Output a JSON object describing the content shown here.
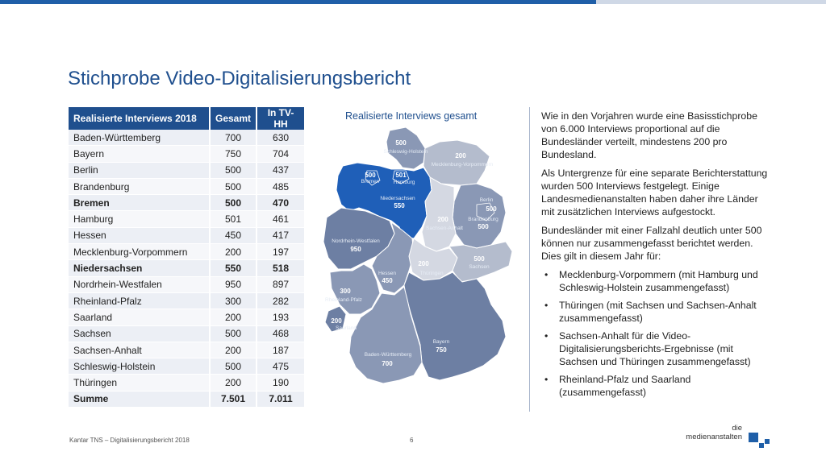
{
  "title": "Stichprobe Video-Digitalisierungsbericht",
  "table": {
    "headers": [
      "Realisierte Interviews 2018",
      "Gesamt",
      "In TV-HH"
    ],
    "rows": [
      {
        "land": "Baden-Württemberg",
        "gesamt": "700",
        "tvhh": "630"
      },
      {
        "land": "Bayern",
        "gesamt": "750",
        "tvhh": "704"
      },
      {
        "land": "Berlin",
        "gesamt": "500",
        "tvhh": "437"
      },
      {
        "land": "Brandenburg",
        "gesamt": "500",
        "tvhh": "485"
      },
      {
        "land": "Bremen",
        "gesamt": "500",
        "tvhh": "470"
      },
      {
        "land": "Hamburg",
        "gesamt": "501",
        "tvhh": "461"
      },
      {
        "land": "Hessen",
        "gesamt": "450",
        "tvhh": "417"
      },
      {
        "land": "Mecklenburg-Vorpommern",
        "gesamt": "200",
        "tvhh": "197"
      },
      {
        "land": "Niedersachsen",
        "gesamt": "550",
        "tvhh": "518"
      },
      {
        "land": "Nordrhein-Westfalen",
        "gesamt": "950",
        "tvhh": "897"
      },
      {
        "land": "Rheinland-Pfalz",
        "gesamt": "300",
        "tvhh": "282"
      },
      {
        "land": "Saarland",
        "gesamt": "200",
        "tvhh": "193"
      },
      {
        "land": "Sachsen",
        "gesamt": "500",
        "tvhh": "468"
      },
      {
        "land": "Sachsen-Anhalt",
        "gesamt": "200",
        "tvhh": "187"
      },
      {
        "land": "Schleswig-Holstein",
        "gesamt": "500",
        "tvhh": "475"
      },
      {
        "land": "Thüringen",
        "gesamt": "200",
        "tvhh": "190"
      },
      {
        "land": "Summe",
        "gesamt": "7.501",
        "tvhh": "7.011"
      }
    ]
  },
  "map": {
    "title": "Realisierte Interviews gesamt",
    "states": [
      {
        "name": "Schleswig-Holstein",
        "value": "500",
        "color": "#8a98b5"
      },
      {
        "name": "Mecklenburg-Vorpommern",
        "value": "200",
        "color": "#b4bccd"
      },
      {
        "name": "Hamburg",
        "value": "501",
        "color": "#1f5fb8"
      },
      {
        "name": "Bremen",
        "value": "500",
        "color": "#1f5fb8"
      },
      {
        "name": "Niedersachsen",
        "value": "550",
        "color": "#1f5fb8"
      },
      {
        "name": "Berlin",
        "value": "500",
        "color": "#8a98b5"
      },
      {
        "name": "Brandenburg",
        "value": "500",
        "color": "#8a98b5"
      },
      {
        "name": "Sachsen-Anhalt",
        "value": "200",
        "color": "#d4d8e2"
      },
      {
        "name": "Nordrhein-Westfalen",
        "value": "950",
        "color": "#6d7fa3"
      },
      {
        "name": "Hessen",
        "value": "450",
        "color": "#8a98b5"
      },
      {
        "name": "Thüringen",
        "value": "200",
        "color": "#d4d8e2"
      },
      {
        "name": "Sachsen",
        "value": "500",
        "color": "#b4bccd"
      },
      {
        "name": "Rheinland-Pfalz",
        "value": "300",
        "color": "#8a98b5"
      },
      {
        "name": "Saarland",
        "value": "200",
        "color": "#6d7fa3"
      },
      {
        "name": "Bayern",
        "value": "750",
        "color": "#6d7fa3"
      },
      {
        "name": "Baden-Württemberg",
        "value": "700",
        "color": "#8a98b5"
      }
    ]
  },
  "text": {
    "p1": "Wie in den Vorjahren wurde eine Basisstichprobe von 6.000 Interviews proportional auf die Bundesländer verteilt, mindestens 200 pro Bundesland.",
    "p2": "Als Untergrenze für eine separate Berichterstattung wurden 500 Interviews festgelegt. Einige Landesmedienanstalten haben daher ihre Länder mit zusätzlichen Interviews aufgestockt.",
    "p3": "Bundesländer mit einer Fallzahl deutlich unter 500 können nur zusammengefasst berichtet werden. Dies gilt in diesem Jahr für:",
    "bullets": [
      "Mecklenburg-Vorpommern (mit Hamburg und Schleswig-Holstein zusammengefasst)",
      "Thüringen (mit Sachsen und Sachsen-Anhalt zusammengefasst)",
      "Sachsen-Anhalt für die Video-Digitalisierungsberichts-Ergebnisse (mit Sachsen und Thüringen zusammengefasst)",
      "Rheinland-Pfalz und Saarland (zusammengefasst)"
    ]
  },
  "footer": {
    "source": "Kantar TNS – Digitalisierungsbericht 2018",
    "page": "6",
    "logo_line1": "die",
    "logo_line2": "medienanstalten"
  }
}
